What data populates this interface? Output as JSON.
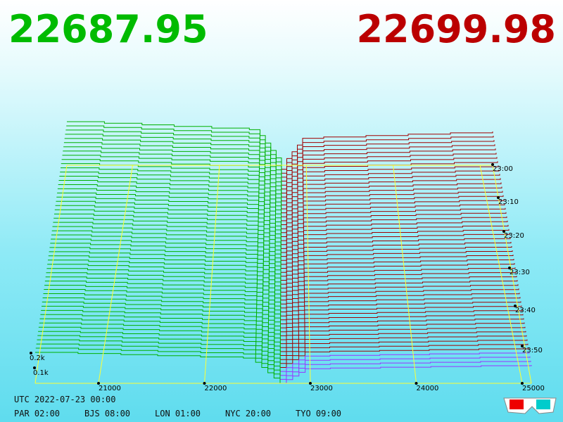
{
  "header": {
    "bid": "22687.95",
    "ask": "22699.98"
  },
  "axis": {
    "price_labels": [
      "21000",
      "22000",
      "23000",
      "24000",
      "25000"
    ],
    "time_labels": [
      "23:00",
      "23:10",
      "23:20",
      "23:30",
      "23:40",
      "23:50"
    ],
    "depth_labels": [
      "0.2k",
      "0.1k"
    ]
  },
  "footer": {
    "utc": "UTC 2022-07-23 00:00",
    "zones": [
      "PAR 02:00",
      "BJS 08:00",
      "LON 01:00",
      "NYC 20:00",
      "TYO 09:00"
    ]
  }
}
